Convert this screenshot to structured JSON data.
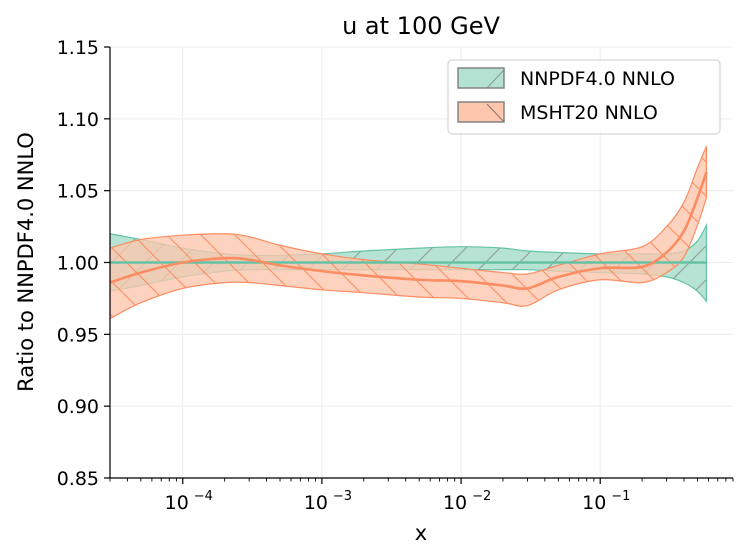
{
  "chart_data": {
    "type": "area",
    "title": "u at 100 GeV",
    "xlabel": "x",
    "ylabel": "Ratio to NNPDF4.0 NNLO",
    "xscale": "log",
    "xlim": [
      3e-05,
      0.9
    ],
    "ylim": [
      0.85,
      1.15
    ],
    "yticks": [
      "0.85",
      "0.90",
      "0.95",
      "1.00",
      "1.05",
      "1.10",
      "1.15"
    ],
    "xticks": [
      {
        "base": "10",
        "exp": "−4",
        "value": 0.0001
      },
      {
        "base": "10",
        "exp": "−3",
        "value": 0.001
      },
      {
        "base": "10",
        "exp": "−2",
        "value": 0.01
      },
      {
        "base": "10",
        "exp": "−1",
        "value": 0.1
      }
    ],
    "grid": true,
    "legend_position": "top-right",
    "x": [
      3e-05,
      5e-05,
      0.0001,
      0.0002,
      0.0003,
      0.0005,
      0.001,
      0.002,
      0.005,
      0.01,
      0.02,
      0.03,
      0.05,
      0.1,
      0.2,
      0.3,
      0.4,
      0.5,
      0.58
    ],
    "series": [
      {
        "name": "NNPDF4.0 NNLO",
        "color": "#66c2a5",
        "fill": "#b3e2d3",
        "central": [
          1.0,
          1.0,
          1.0,
          1.0,
          1.0,
          1.0,
          1.0,
          1.0,
          1.0,
          1.0,
          1.0,
          1.0,
          1.0,
          1.0,
          1.0,
          1.0,
          1.0,
          1.0,
          1.0
        ],
        "upper": [
          1.02,
          1.016,
          1.01,
          1.006,
          1.005,
          1.005,
          1.006,
          1.008,
          1.01,
          1.011,
          1.01,
          1.008,
          1.007,
          1.006,
          1.006,
          1.006,
          1.008,
          1.015,
          1.026
        ],
        "lower": [
          0.98,
          0.984,
          0.99,
          0.994,
          0.995,
          0.995,
          0.995,
          0.995,
          0.995,
          0.995,
          0.995,
          0.995,
          0.994,
          0.993,
          0.992,
          0.99,
          0.986,
          0.98,
          0.973
        ]
      },
      {
        "name": "MSHT20 NNLO",
        "color": "#fc8d62",
        "fill": "#fdc6ad",
        "central": [
          0.986,
          0.993,
          1.0,
          1.003,
          1.002,
          0.998,
          0.994,
          0.991,
          0.988,
          0.987,
          0.984,
          0.982,
          0.99,
          0.996,
          0.997,
          1.007,
          1.022,
          1.045,
          1.063
        ],
        "upper": [
          1.01,
          1.016,
          1.019,
          1.02,
          1.018,
          1.012,
          1.006,
          1.002,
          0.999,
          0.996,
          0.993,
          0.992,
          0.998,
          1.006,
          1.011,
          1.025,
          1.042,
          1.066,
          1.081
        ],
        "lower": [
          0.961,
          0.972,
          0.982,
          0.986,
          0.986,
          0.984,
          0.981,
          0.979,
          0.976,
          0.975,
          0.972,
          0.97,
          0.981,
          0.988,
          0.986,
          0.993,
          1.004,
          1.026,
          1.045
        ]
      }
    ]
  }
}
